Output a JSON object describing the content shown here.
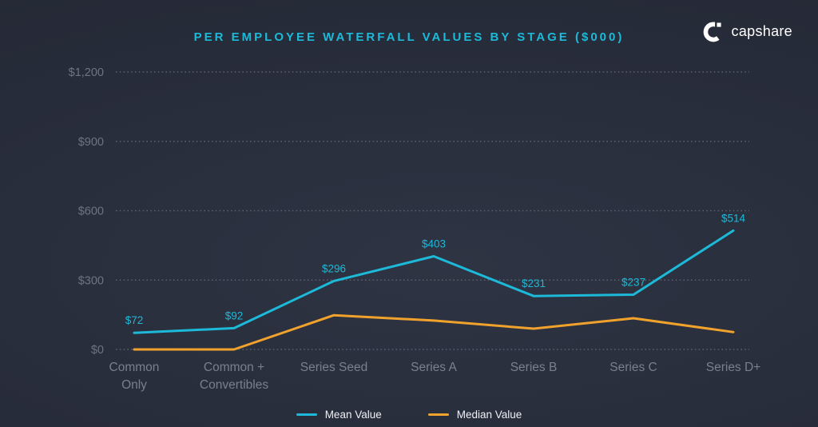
{
  "header": {
    "title": "PER EMPLOYEE WATERFALL VALUES BY STAGE ($000)",
    "logo_text": "capshare"
  },
  "colors": {
    "accent_cyan": "#1db9d8",
    "accent_orange": "#f0a22c",
    "grid_line": "#5a6070",
    "y_axis_text": "#6e7480",
    "x_axis_text": "#78808e",
    "legend_text": "#eef0f3",
    "logo_white": "#ffffff",
    "background": "#262b38"
  },
  "chart_data": {
    "type": "line",
    "title": "PER EMPLOYEE WATERFALL VALUES BY STAGE ($000)",
    "categories": [
      "Common Only",
      "Common + Convertibles",
      "Series Seed",
      "Series A",
      "Series B",
      "Series C",
      "Series D+"
    ],
    "category_label_lines": [
      [
        "Common",
        "Only"
      ],
      [
        "Common +",
        "Convertibles"
      ],
      [
        "Series Seed"
      ],
      [
        "Series A"
      ],
      [
        "Series B"
      ],
      [
        "Series C"
      ],
      [
        "Series D+"
      ]
    ],
    "series": [
      {
        "name": "Mean Value",
        "color": "#1db9d8",
        "values": [
          72,
          92,
          296,
          403,
          231,
          237,
          514
        ],
        "point_labels": [
          "$72",
          "$92",
          "$296",
          "$403",
          "$231",
          "$237",
          "$514"
        ],
        "show_labels": true
      },
      {
        "name": "Median Value",
        "color": "#f0a22c",
        "values": [
          0,
          0,
          148,
          125,
          90,
          135,
          75
        ],
        "point_labels": [],
        "show_labels": false
      }
    ],
    "y_axis": {
      "min": 0,
      "max": 1200,
      "ticks": [
        {
          "value": 0,
          "label": "$0"
        },
        {
          "value": 300,
          "label": "$300"
        },
        {
          "value": 600,
          "label": "$600"
        },
        {
          "value": 900,
          "label": "$900"
        },
        {
          "value": 1200,
          "label": "$1,200"
        }
      ]
    },
    "grid": "dotted",
    "legend_position": "bottom"
  },
  "legend": {
    "items": [
      {
        "label": "Mean Value",
        "color": "#1db9d8"
      },
      {
        "label": "Median Value",
        "color": "#f0a22c"
      }
    ]
  }
}
